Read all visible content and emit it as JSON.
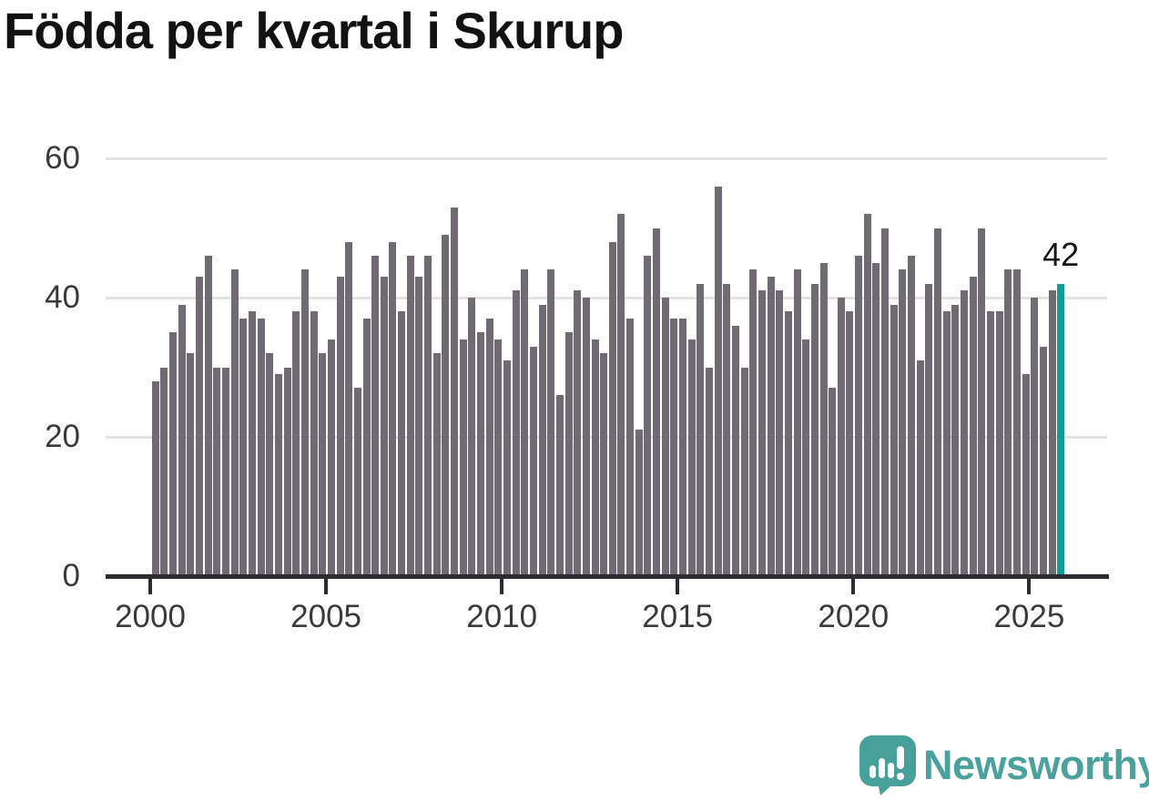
{
  "title": "Födda per kvartal i Skurup",
  "branding": {
    "logo_text": "Newsworthy",
    "logo_icon": "newsworthy-speech-bubble-chart-icon",
    "logo_color": "#4aa19e"
  },
  "colors": {
    "bar": "#6e6c72",
    "highlight": "#119c98",
    "gridline": "#e3e3e3",
    "axis": "#2d2c2f",
    "tick_label": "#3a3a3a",
    "title_text": "#121212",
    "annotation_text": "#161616",
    "background": "#ffffff"
  },
  "chart_data": {
    "type": "bar",
    "title": "Födda per kvartal i Skurup",
    "xlabel": "",
    "ylabel": "",
    "grid": "horizontal",
    "legend": "none",
    "ylim": [
      0,
      62
    ],
    "y_ticks": [
      0,
      20,
      40,
      60
    ],
    "y_tick_labels": [
      "0",
      "20",
      "40",
      "60"
    ],
    "x_tick_labels": [
      "2000",
      "2005",
      "2010",
      "2015",
      "2020",
      "2025"
    ],
    "x_tick_quarter_index": [
      0,
      20,
      40,
      60,
      80,
      100
    ],
    "start_quarter": "2000-Q1",
    "end_quarter": "2025-Q4",
    "quarters_per_year": 4,
    "series": [
      {
        "name": "Födda per kvartal",
        "values": [
          28,
          30,
          35,
          39,
          32,
          43,
          46,
          30,
          30,
          44,
          37,
          38,
          37,
          32,
          29,
          30,
          38,
          44,
          38,
          32,
          34,
          43,
          48,
          27,
          37,
          46,
          43,
          48,
          38,
          46,
          43,
          46,
          32,
          49,
          53,
          34,
          40,
          35,
          37,
          34,
          31,
          41,
          44,
          33,
          39,
          44,
          26,
          35,
          41,
          40,
          34,
          32,
          48,
          52,
          37,
          21,
          46,
          50,
          40,
          37,
          37,
          34,
          42,
          30,
          56,
          42,
          36,
          30,
          44,
          41,
          43,
          41,
          38,
          44,
          34,
          42,
          45,
          27,
          40,
          38,
          46,
          52,
          45,
          50,
          39,
          44,
          46,
          31,
          42,
          50,
          38,
          39,
          41,
          43,
          50,
          38,
          38,
          44,
          44,
          29,
          40,
          33,
          41,
          42
        ]
      }
    ],
    "highlight_last_bar": true,
    "last_label": "42"
  }
}
